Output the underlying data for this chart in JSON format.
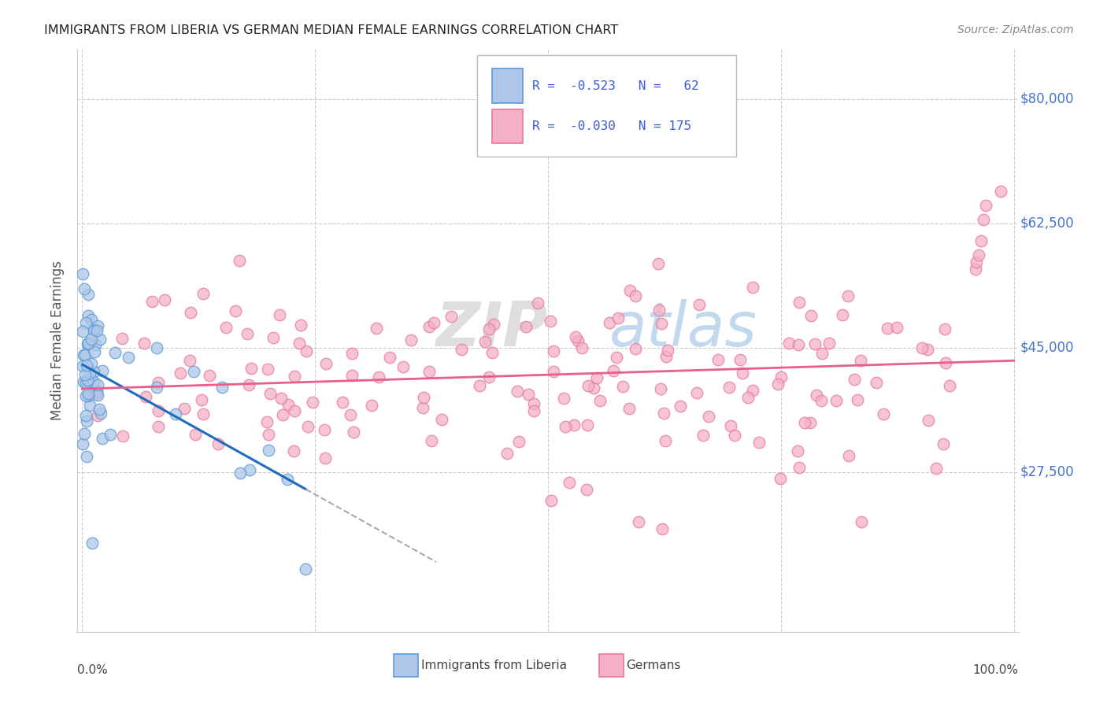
{
  "title": "IMMIGRANTS FROM LIBERIA VS GERMAN MEDIAN FEMALE EARNINGS CORRELATION CHART",
  "source": "Source: ZipAtlas.com",
  "ylabel": "Median Female Earnings",
  "ytick_labels": [
    "$27,500",
    "$45,000",
    "$62,500",
    "$80,000"
  ],
  "ytick_values": [
    27500,
    45000,
    62500,
    80000
  ],
  "ymin": 5000,
  "ymax": 87000,
  "xmin": -0.005,
  "xmax": 1.005,
  "series": [
    {
      "name": "Immigrants from Liberia",
      "R": -0.523,
      "N": 62,
      "color_face": "#aec6e8",
      "color_edge": "#5b9bd5",
      "trend_color": "#1f6bbf",
      "trend_style": "solid"
    },
    {
      "name": "Germans",
      "R": -0.03,
      "N": 175,
      "color_face": "#f4b0c5",
      "color_edge": "#e8789a",
      "trend_color": "#e8608a",
      "trend_style": "solid"
    }
  ],
  "legend_R_color": "#3b5bdb",
  "background_color": "#ffffff",
  "grid_color": "#cccccc",
  "watermark_zip_color": "#d0d0d0",
  "watermark_atlas_color": "#a8c8e8"
}
